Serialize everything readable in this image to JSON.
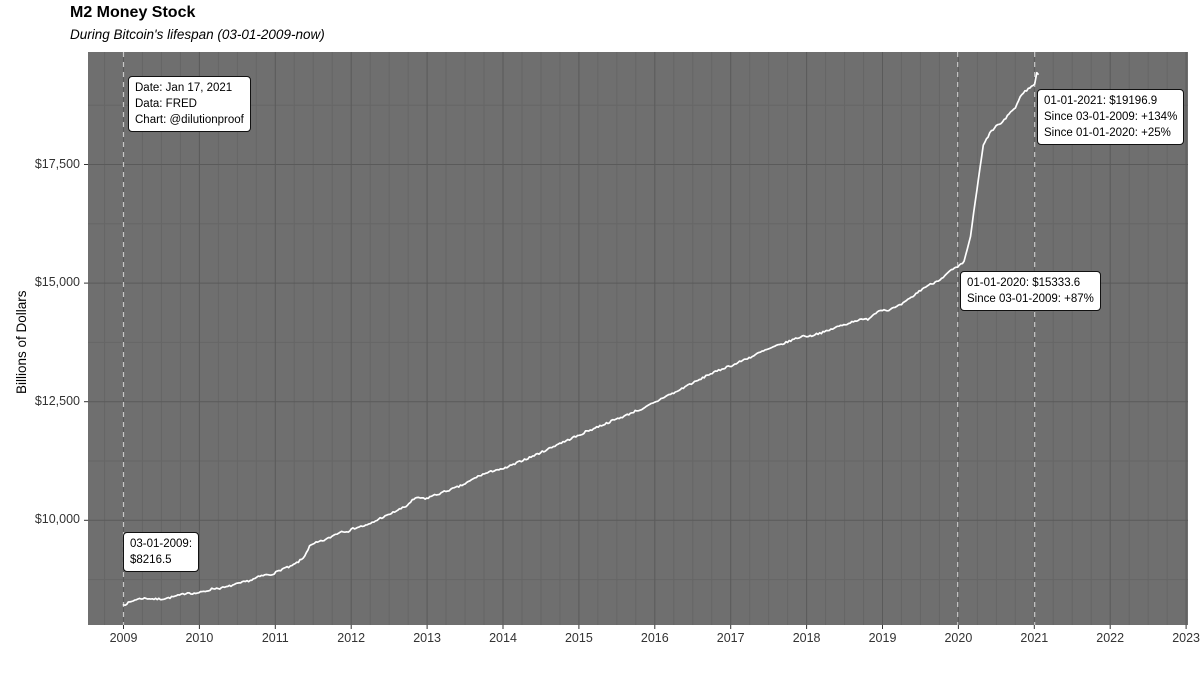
{
  "header": {
    "title": "M2 Money Stock",
    "subtitle": "During Bitcoin's lifespan (03-01-2009-now)"
  },
  "annotations": {
    "info": {
      "lines": [
        "Date: Jan 17, 2021",
        "Data: FRED",
        "Chart: @dilutionproof"
      ]
    },
    "y2021": {
      "lines": [
        "01-01-2021: $19196.9",
        "Since 03-01-2009: +134%",
        "Since 01-01-2020: +25%"
      ]
    },
    "y2020": {
      "lines": [
        "01-01-2020: $15333.6",
        "Since 03-01-2009: +87%"
      ]
    },
    "y2009": {
      "lines": [
        "03-01-2009:",
        "$8216.5"
      ]
    }
  },
  "chart_data": {
    "type": "line",
    "title": "M2 Money Stock",
    "subtitle": "During Bitcoin's lifespan (03-01-2009-now)",
    "xlabel": "",
    "ylabel": "Billions of Dollars",
    "x_ticks": [
      2009,
      2010,
      2011,
      2012,
      2013,
      2014,
      2015,
      2016,
      2017,
      2018,
      2019,
      2020,
      2021,
      2022,
      2023
    ],
    "y_ticks_labels": [
      "$10,000",
      "$12,500",
      "$15,000",
      "$17,500"
    ],
    "y_ticks_values": [
      10000,
      12500,
      15000,
      17500
    ],
    "y_minor_values": [
      8750,
      11250,
      13750,
      16250,
      18750
    ],
    "xlim": [
      2008.55,
      2023.05
    ],
    "ylim": [
      7790,
      19875
    ],
    "grid": {
      "minor_x_interval_years": 0.25,
      "minor_y_interval": 1250,
      "legend": "none"
    },
    "vlines_dashed_dates": [
      "2009-03-01",
      "2020-01-01",
      "2021-01-01"
    ],
    "key_points": [
      {
        "date": "2009-03-01",
        "value": 8216.5
      },
      {
        "date": "2020-01-01",
        "value": 15333.6,
        "since_2009": "+87%"
      },
      {
        "date": "2021-01-01",
        "value": 19196.9,
        "since_2009": "+134%",
        "since_2020": "+25%"
      }
    ],
    "series": [
      {
        "name": "M2 Money Stock (FRED, weekly)",
        "color": "#ffffff",
        "start": "2009-03",
        "interval": "monthly",
        "values": [
          8216.5,
          8273,
          8334,
          8356,
          8351,
          8337,
          8343,
          8363,
          8395,
          8429,
          8478,
          8455,
          8480,
          8513,
          8564,
          8569,
          8590,
          8633,
          8667,
          8707,
          8742,
          8805,
          8846,
          8856,
          8920,
          8988,
          9019,
          9103,
          9200,
          9451,
          9526,
          9567,
          9623,
          9704,
          9767,
          9771,
          9837,
          9870,
          9896,
          9964,
          10043,
          10095,
          10163,
          10231,
          10288,
          10422,
          10483,
          10445,
          10511,
          10548,
          10602,
          10649,
          10698,
          10753,
          10828,
          10910,
          10968,
          11011,
          11066,
          11068,
          11132,
          11186,
          11256,
          11306,
          11368,
          11425,
          11493,
          11556,
          11625,
          11672,
          11744,
          11785,
          11866,
          11914,
          11977,
          12029,
          12089,
          12145,
          12192,
          12255,
          12316,
          12344,
          12435,
          12494,
          12580,
          12645,
          12695,
          12775,
          12855,
          12912,
          12977,
          13062,
          13113,
          13172,
          13236,
          13269,
          13338,
          13405,
          13451,
          13527,
          13584,
          13634,
          13688,
          13732,
          13789,
          13843,
          13887,
          13881,
          13931,
          13960,
          14006,
          14067,
          14111,
          14153,
          14209,
          14227,
          14241,
          14351,
          14445,
          14424,
          14472,
          14528,
          14620,
          14718,
          14829,
          14924,
          14986,
          15060,
          15151,
          15274,
          15333.6,
          15447,
          15988,
          16962,
          17901,
          18160,
          18312,
          18383,
          18576,
          18697,
          18989,
          19093,
          19196.9
        ],
        "end_point": {
          "date": "2021-01-17",
          "value": 19420
        }
      }
    ],
    "panel_bg": "#6f6f6f",
    "grid_major_color": "#5a5a5a",
    "grid_minor_color": "#666666",
    "vline_color": "#c8c8c8",
    "tick_color": "#333333"
  }
}
